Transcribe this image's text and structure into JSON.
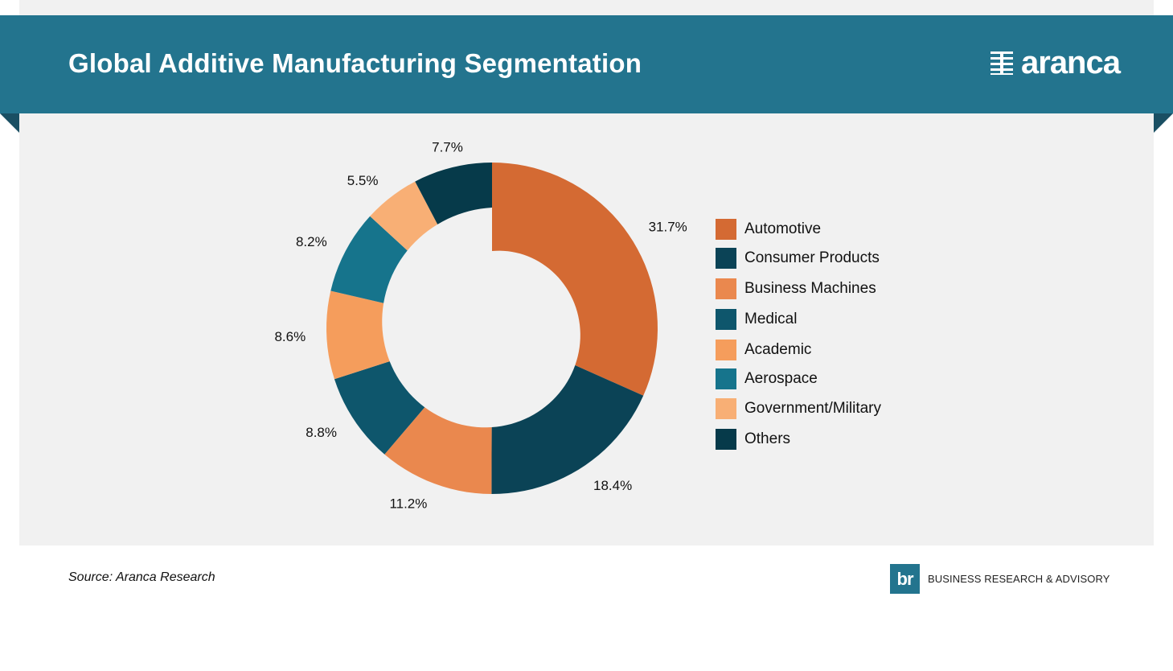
{
  "header": {
    "title": "Global Additive Manufacturing Segmentation",
    "brand": "aranca",
    "banner_color": "#23748e"
  },
  "chart_data": {
    "type": "pie",
    "style": "donut",
    "title": "Global Additive Manufacturing Segmentation",
    "legend_position": "right",
    "start_angle": "12 o'clock, clockwise",
    "slices": [
      {
        "name": "Automotive",
        "value": 31.7,
        "label": "31.7%",
        "color": "#d46a33"
      },
      {
        "name": "Consumer Products",
        "value": 18.4,
        "label": "18.4%",
        "color": "#0b4356"
      },
      {
        "name": "Business Machines",
        "value": 11.2,
        "label": "11.2%",
        "color": "#ea884e"
      },
      {
        "name": "Medical",
        "value": 8.8,
        "label": "8.8%",
        "color": "#0e566c"
      },
      {
        "name": "Academic",
        "value": 8.6,
        "label": "8.6%",
        "color": "#f59d5c"
      },
      {
        "name": "Aerospace",
        "value": 8.2,
        "label": "8.2%",
        "color": "#16748c"
      },
      {
        "name": "Government/Military",
        "value": 5.5,
        "label": "5.5%",
        "color": "#f8af75"
      },
      {
        "name": "Others",
        "value": 7.7,
        "label": "7.7%",
        "color": "#063a4a"
      }
    ]
  },
  "footer": {
    "source": "Source: Aranca Research",
    "logo_text": "br",
    "company": "BUSINESS RESEARCH & ADVISORY"
  }
}
